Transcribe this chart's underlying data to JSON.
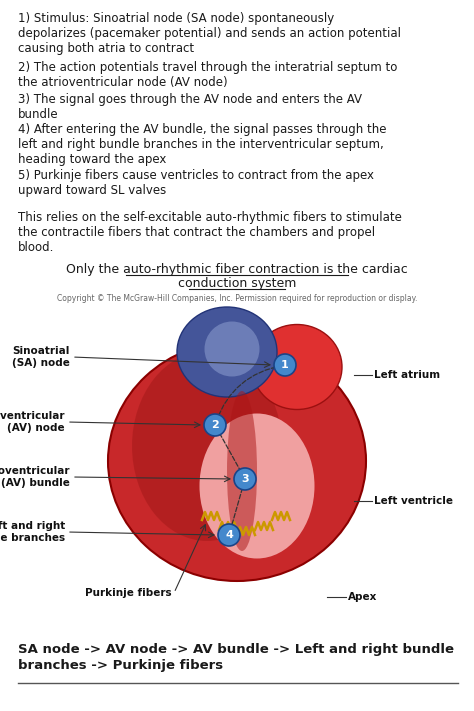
{
  "bg_color": "#ffffff",
  "text_color": "#1a1a1a",
  "body_text_1": "1) Stimulus: Sinoatrial node (SA node) spontaneously\ndepolarizes (pacemaker potential) and sends an action potential\ncausing both atria to contract",
  "body_text_2": "2) The action potentials travel through the interatrial septum to\nthe atrioventricular node (AV node)",
  "body_text_3": "3) The signal goes through the AV node and enters the AV\nbundle",
  "body_text_4": "4) After entering the AV bundle, the signal passes through the\nleft and right bundle branches in the interventricular septum,\nheading toward the apex",
  "body_text_5": "5) Purkinje fibers cause ventricles to contract from the apex\nupward toward SL valves",
  "body_text_6": "This relies on the self-excitable auto-rhythmic fibers to stimulate\nthe contractile fibers that contract the chambers and propel\nblood.",
  "underline_text_line1": "Only the auto-rhythmic fiber contraction is the cardiac",
  "underline_text_line2": "conduction system",
  "copyright_text": "Copyright © The McGraw-Hill Companies, Inc. Permission required for reproduction or display.",
  "bottom_bold_line1": "SA node -> AV node -> AV bundle -> Left and right bundle",
  "bottom_bold_line2": "branches -> Purkinje fibers",
  "heart_labels": {
    "sinoatrial": "Sinoatrial\n(SA) node",
    "av_node": "Atrioventricular\n(AV) node",
    "av_bundle_label_line1": "Atrioventricular",
    "av_bundle_label_line2": "(AV) bundle",
    "bundle_branches_line1": "Left and right",
    "bundle_branches_line2": "bundle branches",
    "purkinje": "Purkinje fibers",
    "left_atrium": "Left atrium",
    "left_ventricle": "Left ventricle",
    "apex": "Apex"
  },
  "font_size_body": 8.5,
  "font_size_underline": 9.0,
  "font_size_copyright": 5.5,
  "font_size_bottom_bold": 9.5,
  "font_size_labels": 7.5
}
